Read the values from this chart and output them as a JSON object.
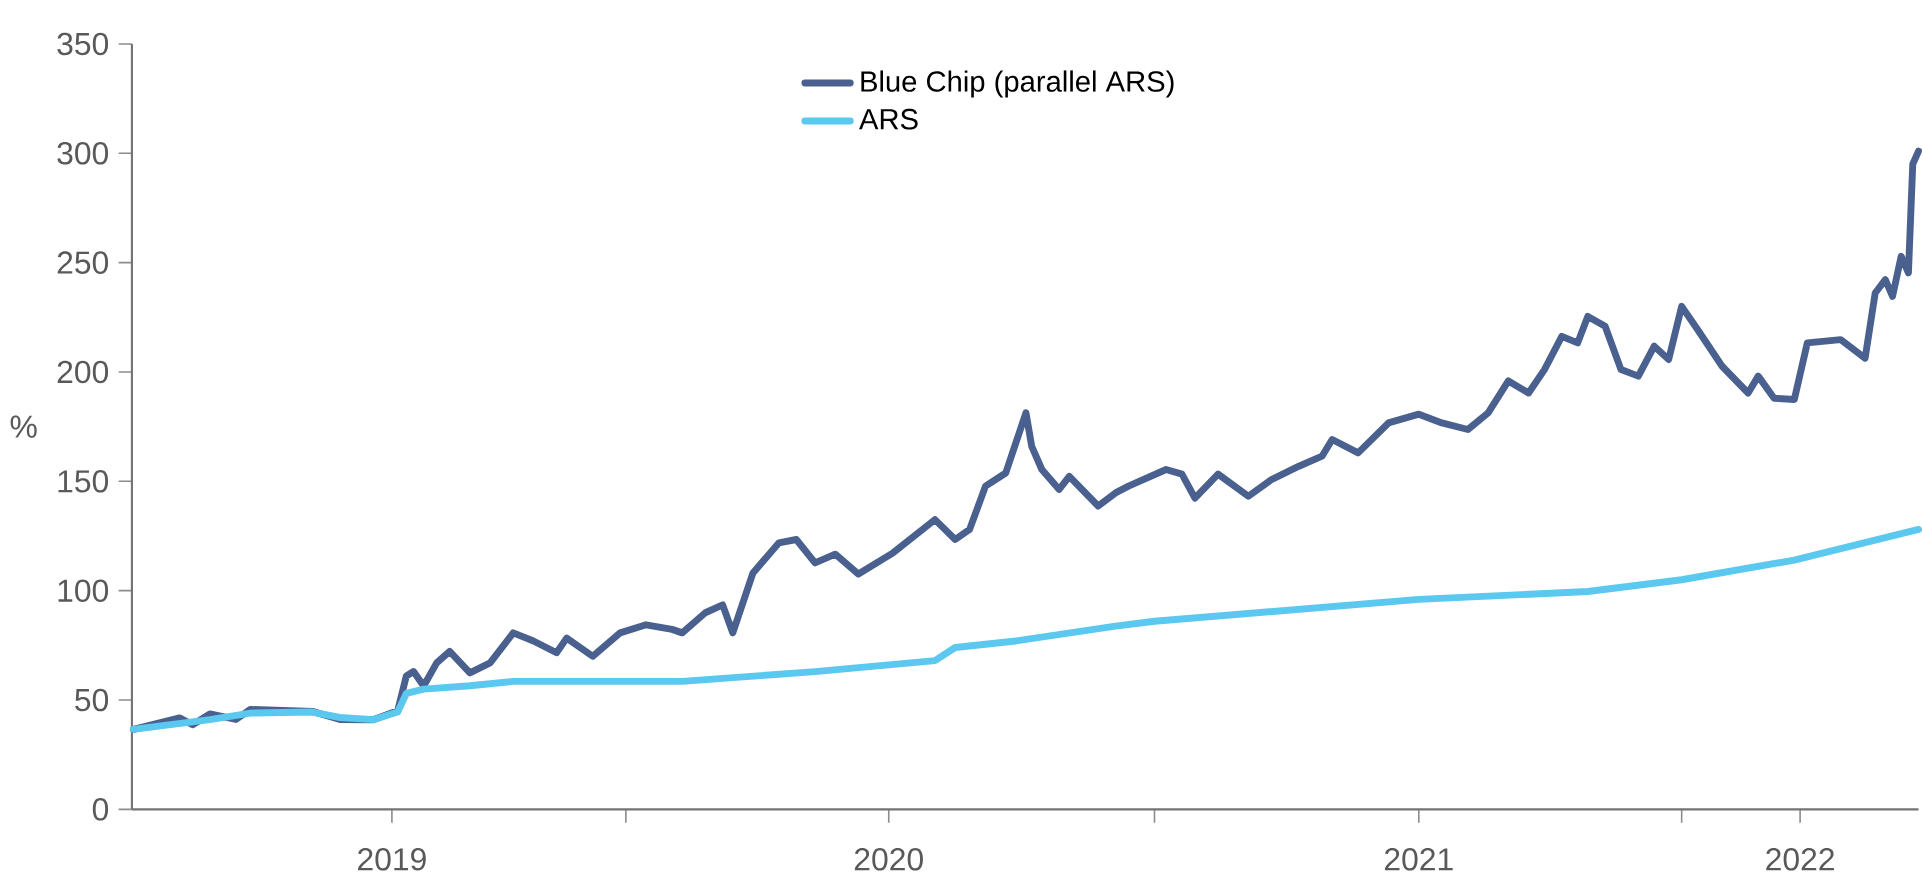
{
  "chart_data": {
    "type": "line",
    "ylabel": "%",
    "x": [
      "2019-01-25",
      "2019-02-26",
      "2019-03-07",
      "2019-03-19",
      "2019-04-06",
      "2019-04-16",
      "2019-05-29",
      "2019-06-17",
      "2019-07-10",
      "2019-07-27",
      "2019-08-02",
      "2019-08-07",
      "2019-08-14",
      "2019-08-23",
      "2019-09-01",
      "2019-09-15",
      "2019-09-29",
      "2019-10-15",
      "2019-10-29",
      "2019-11-14",
      "2019-11-21",
      "2019-12-09",
      "2019-12-28",
      "2020-01-15",
      "2020-02-02",
      "2020-02-09",
      "2020-02-25",
      "2020-03-08",
      "2020-03-15",
      "2020-03-29",
      "2020-04-16",
      "2020-04-28",
      "2020-05-11",
      "2020-05-25",
      "2020-06-10",
      "2020-07-04",
      "2020-08-02",
      "2020-08-16",
      "2020-08-26",
      "2020-09-06",
      "2020-09-20",
      "2020-09-27",
      "2020-10-04",
      "2020-10-08",
      "2020-10-15",
      "2020-10-27",
      "2020-11-03",
      "2020-11-23",
      "2020-12-05",
      "2020-12-14",
      "2021-01-09",
      "2021-01-20",
      "2021-01-29",
      "2021-02-14",
      "2021-03-07",
      "2021-03-23",
      "2021-04-11",
      "2021-04-27",
      "2021-05-04",
      "2021-05-22",
      "2021-06-12",
      "2021-07-03",
      "2021-07-19",
      "2021-08-06",
      "2021-08-20",
      "2021-09-03",
      "2021-09-17",
      "2021-09-28",
      "2021-10-10",
      "2021-10-21",
      "2021-10-28",
      "2021-11-09",
      "2021-11-20",
      "2021-12-02",
      "2021-12-13",
      "2021-12-23",
      "2022-01-01",
      "2022-01-12",
      "2022-01-29",
      "2022-02-16",
      "2022-02-23",
      "2022-03-06",
      "2022-03-20",
      "2022-03-29",
      "2022-04-21",
      "2022-05-08",
      "2022-05-15",
      "2022-05-22",
      "2022-05-27",
      "2022-06-02",
      "2022-06-07",
      "2022-06-10",
      "2022-06-14"
    ],
    "series": [
      {
        "name": "Blue Chip (parallel ARS)",
        "color": "#4a6190",
        "values": [
          36.6,
          41.8,
          38.7,
          43.6,
          41.1,
          45.7,
          44.8,
          41.1,
          41,
          45.1,
          61,
          63,
          56.4,
          67,
          72.2,
          62.4,
          67,
          80.7,
          77,
          71.6,
          78.3,
          70,
          80.7,
          84.4,
          82.3,
          80.7,
          89.9,
          93.5,
          80.7,
          108.1,
          121.9,
          123.4,
          112.7,
          116.7,
          107.6,
          117.3,
          132.5,
          123.4,
          128,
          147.8,
          153.8,
          167.6,
          181.3,
          166,
          155.4,
          146.3,
          152.3,
          138.7,
          144.7,
          147.8,
          155.4,
          153.3,
          142.3,
          153.3,
          143.2,
          150.8,
          156.9,
          161.5,
          169.1,
          163,
          176.7,
          180.7,
          176.7,
          173.7,
          181.3,
          195.9,
          190.4,
          201.1,
          216.3,
          213.3,
          225.4,
          220.9,
          201.1,
          198.1,
          211.8,
          205.7,
          230,
          219.4,
          202.6,
          190.4,
          198.1,
          188,
          187.4,
          213.3,
          214.8,
          206.3,
          236.1,
          242.2,
          234.6,
          252.9,
          245.3,
          295,
          301
        ]
      },
      {
        "name": "ARS",
        "color": "#5bc8f0",
        "x": [
          "2019-01-25",
          "2019-03-19",
          "2019-04-16",
          "2019-05-29",
          "2019-06-17",
          "2019-07-10",
          "2019-07-27",
          "2019-08-02",
          "2019-08-14",
          "2019-09-15",
          "2019-10-15",
          "2020-02-09",
          "2020-05-11",
          "2020-08-02",
          "2020-08-16",
          "2020-09-27",
          "2020-12-05",
          "2021-01-01",
          "2021-07-03",
          "2021-10-28",
          "2022-01-01",
          "2022-03-20",
          "2022-06-14"
        ],
        "values": [
          36.6,
          41,
          44,
          44.5,
          42,
          41,
          44.5,
          53,
          55,
          56.5,
          58.5,
          58.5,
          63,
          68,
          74,
          77,
          83.8,
          86,
          96,
          99.6,
          105,
          114,
          128
        ]
      }
    ],
    "xlim": [
      "2019-01-24",
      "2022-06-14"
    ],
    "xticks": [
      {
        "value": "2019-07-23",
        "label": "2019"
      },
      {
        "value": "2020-01-01",
        "label": null
      },
      {
        "value": "2020-07-01",
        "label": "2020"
      },
      {
        "value": "2021-01-01",
        "label": null
      },
      {
        "value": "2021-07-03",
        "label": "2021"
      },
      {
        "value": "2022-01-01",
        "label": null
      },
      {
        "value": "2022-03-24",
        "label": "2022"
      }
    ],
    "ylim": [
      0,
      350
    ],
    "yticks": [
      0,
      50,
      100,
      150,
      200,
      250,
      300,
      350
    ],
    "legend": "top",
    "grid": false,
    "line_style": "solid",
    "marker": "none"
  }
}
